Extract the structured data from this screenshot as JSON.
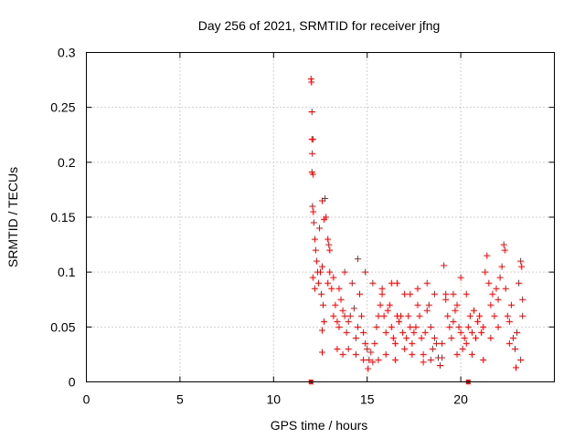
{
  "chart_data": {
    "type": "scatter",
    "title": "Day 256 of 2021, SRMTID for receiver jfng",
    "xlabel": "GPS time / hours",
    "ylabel": "SRMTID / TECUs",
    "xlim": [
      0,
      25
    ],
    "ylim": [
      0,
      0.3
    ],
    "xticks": [
      "0",
      "5",
      "10",
      "15",
      "20"
    ],
    "xtick_values": [
      0,
      5,
      10,
      15,
      20
    ],
    "yticks": [
      "0",
      "0.05",
      "0.1",
      "0.15",
      "0.2",
      "0.25",
      "0.3"
    ],
    "ytick_values": [
      0,
      0.05,
      0.1,
      0.15,
      0.2,
      0.25,
      0.3
    ],
    "grid": true,
    "marker": "+",
    "color": "#ff0000",
    "series": [
      {
        "name": "SRMTID",
        "points": [
          [
            12.0,
            0.276
          ],
          [
            12.02,
            0.273
          ],
          [
            12.05,
            0.246
          ],
          [
            12.05,
            0.221
          ],
          [
            12.1,
            0.221
          ],
          [
            12.07,
            0.208
          ],
          [
            12.05,
            0.191
          ],
          [
            12.1,
            0.189
          ],
          [
            12.08,
            0.16
          ],
          [
            12.12,
            0.155
          ],
          [
            12.15,
            0.145
          ],
          [
            12.2,
            0.13
          ],
          [
            12.25,
            0.12
          ],
          [
            12.3,
            0.11
          ],
          [
            12.35,
            0.1
          ],
          [
            12.1,
            0.095
          ],
          [
            12.2,
            0.085
          ],
          [
            12.4,
            0.09
          ],
          [
            12.5,
            0.1
          ],
          [
            12.6,
            0.105
          ],
          [
            12.6,
            0.165
          ],
          [
            12.75,
            0.167
          ],
          [
            12.7,
            0.148
          ],
          [
            12.8,
            0.15
          ],
          [
            12.45,
            0.14
          ],
          [
            12.9,
            0.13
          ],
          [
            12.95,
            0.125
          ],
          [
            13.0,
            0.12
          ],
          [
            12.55,
            0.08
          ],
          [
            12.65,
            0.07
          ],
          [
            12.7,
            0.055
          ],
          [
            12.6,
            0.047
          ],
          [
            12.6,
            0.027
          ],
          [
            12.9,
            0.09
          ],
          [
            13.1,
            0.085
          ],
          [
            13.2,
            0.06
          ],
          [
            13.3,
            0.07
          ],
          [
            13.4,
            0.055
          ],
          [
            13.5,
            0.05
          ],
          [
            13.6,
            0.075
          ],
          [
            13.7,
            0.065
          ],
          [
            13.8,
            0.06
          ],
          [
            13.9,
            0.045
          ],
          [
            14.0,
            0.055
          ],
          [
            14.1,
            0.06
          ],
          [
            14.3,
            0.067
          ],
          [
            14.4,
            0.04
          ],
          [
            14.5,
            0.05
          ],
          [
            14.6,
            0.08
          ],
          [
            14.7,
            0.06
          ],
          [
            14.8,
            0.045
          ],
          [
            14.9,
            0.035
          ],
          [
            15.0,
            0.03
          ],
          [
            15.05,
            0.012
          ],
          [
            15.1,
            0.02
          ],
          [
            15.2,
            0.027
          ],
          [
            15.3,
            0.018
          ],
          [
            15.4,
            0.035
          ],
          [
            15.5,
            0.05
          ],
          [
            15.6,
            0.06
          ],
          [
            15.7,
            0.07
          ],
          [
            15.8,
            0.08
          ],
          [
            15.9,
            0.06
          ],
          [
            16.0,
            0.045
          ],
          [
            16.1,
            0.065
          ],
          [
            16.2,
            0.07
          ],
          [
            16.3,
            0.05
          ],
          [
            16.4,
            0.04
          ],
          [
            16.5,
            0.035
          ],
          [
            16.6,
            0.06
          ],
          [
            16.7,
            0.055
          ],
          [
            16.8,
            0.06
          ],
          [
            16.9,
            0.045
          ],
          [
            17.0,
            0.03
          ],
          [
            17.1,
            0.04
          ],
          [
            17.2,
            0.06
          ],
          [
            17.3,
            0.05
          ],
          [
            17.4,
            0.035
          ],
          [
            17.5,
            0.045
          ],
          [
            17.6,
            0.05
          ],
          [
            17.7,
            0.07
          ],
          [
            17.8,
            0.06
          ],
          [
            17.9,
            0.04
          ],
          [
            18.0,
            0.025
          ],
          [
            18.1,
            0.045
          ],
          [
            18.2,
            0.065
          ],
          [
            18.3,
            0.07
          ],
          [
            18.4,
            0.05
          ],
          [
            18.5,
            0.03
          ],
          [
            18.6,
            0.04
          ],
          [
            18.7,
            0.035
          ],
          [
            18.8,
            0.022
          ],
          [
            18.9,
            0.015
          ],
          [
            19.0,
            0.035
          ],
          [
            19.1,
            0.106
          ],
          [
            19.2,
            0.08
          ],
          [
            19.3,
            0.06
          ],
          [
            19.4,
            0.05
          ],
          [
            19.5,
            0.04
          ],
          [
            19.6,
            0.055
          ],
          [
            19.7,
            0.065
          ],
          [
            19.8,
            0.07
          ],
          [
            19.9,
            0.05
          ],
          [
            20.0,
            0.045
          ],
          [
            20.1,
            0.03
          ],
          [
            20.2,
            0.04
          ],
          [
            20.3,
            0.035
          ],
          [
            20.4,
            0.05
          ],
          [
            20.5,
            0.06
          ],
          [
            20.6,
            0.045
          ],
          [
            20.7,
            0.065
          ],
          [
            20.8,
            0.04
          ],
          [
            20.9,
            0.055
          ],
          [
            21.0,
            0.06
          ],
          [
            21.1,
            0.045
          ],
          [
            21.2,
            0.05
          ],
          [
            21.3,
            0.1
          ],
          [
            21.4,
            0.115
          ],
          [
            21.5,
            0.09
          ],
          [
            21.6,
            0.07
          ],
          [
            21.7,
            0.08
          ],
          [
            21.8,
            0.06
          ],
          [
            21.9,
            0.085
          ],
          [
            22.0,
            0.075
          ],
          [
            22.1,
            0.095
          ],
          [
            22.2,
            0.105
          ],
          [
            22.3,
            0.125
          ],
          [
            22.35,
            0.12
          ],
          [
            22.4,
            0.085
          ],
          [
            22.5,
            0.06
          ],
          [
            22.6,
            0.055
          ],
          [
            22.7,
            0.07
          ],
          [
            22.8,
            0.04
          ],
          [
            22.9,
            0.03
          ],
          [
            22.95,
            0.013
          ],
          [
            23.0,
            0.045
          ],
          [
            23.1,
            0.09
          ],
          [
            23.2,
            0.11
          ],
          [
            23.25,
            0.105
          ],
          [
            23.3,
            0.075
          ],
          [
            13.0,
            0.1
          ],
          [
            13.2,
            0.095
          ],
          [
            13.5,
            0.085
          ],
          [
            13.8,
            0.1
          ],
          [
            14.2,
            0.09
          ],
          [
            14.5,
            0.112
          ],
          [
            14.9,
            0.1
          ],
          [
            15.3,
            0.09
          ],
          [
            15.8,
            0.085
          ],
          [
            16.3,
            0.09
          ],
          [
            16.6,
            0.09
          ],
          [
            17.0,
            0.08
          ],
          [
            17.3,
            0.08
          ],
          [
            17.7,
            0.085
          ],
          [
            18.2,
            0.09
          ],
          [
            18.6,
            0.08
          ],
          [
            19.2,
            0.075
          ],
          [
            19.6,
            0.08
          ],
          [
            20.0,
            0.095
          ],
          [
            20.3,
            0.08
          ],
          [
            13.4,
            0.03
          ],
          [
            13.7,
            0.025
          ],
          [
            14.0,
            0.03
          ],
          [
            14.4,
            0.025
          ],
          [
            14.8,
            0.02
          ],
          [
            15.6,
            0.02
          ],
          [
            16.0,
            0.025
          ],
          [
            16.5,
            0.02
          ],
          [
            17.4,
            0.025
          ],
          [
            18.0,
            0.018
          ],
          [
            18.4,
            0.02
          ],
          [
            19.0,
            0.022
          ],
          [
            19.8,
            0.025
          ],
          [
            20.6,
            0.025
          ],
          [
            21.2,
            0.02
          ],
          [
            21.6,
            0.04
          ],
          [
            22.0,
            0.05
          ],
          [
            22.6,
            0.035
          ],
          [
            23.2,
            0.02
          ],
          [
            23.3,
            0.06
          ]
        ]
      }
    ]
  }
}
